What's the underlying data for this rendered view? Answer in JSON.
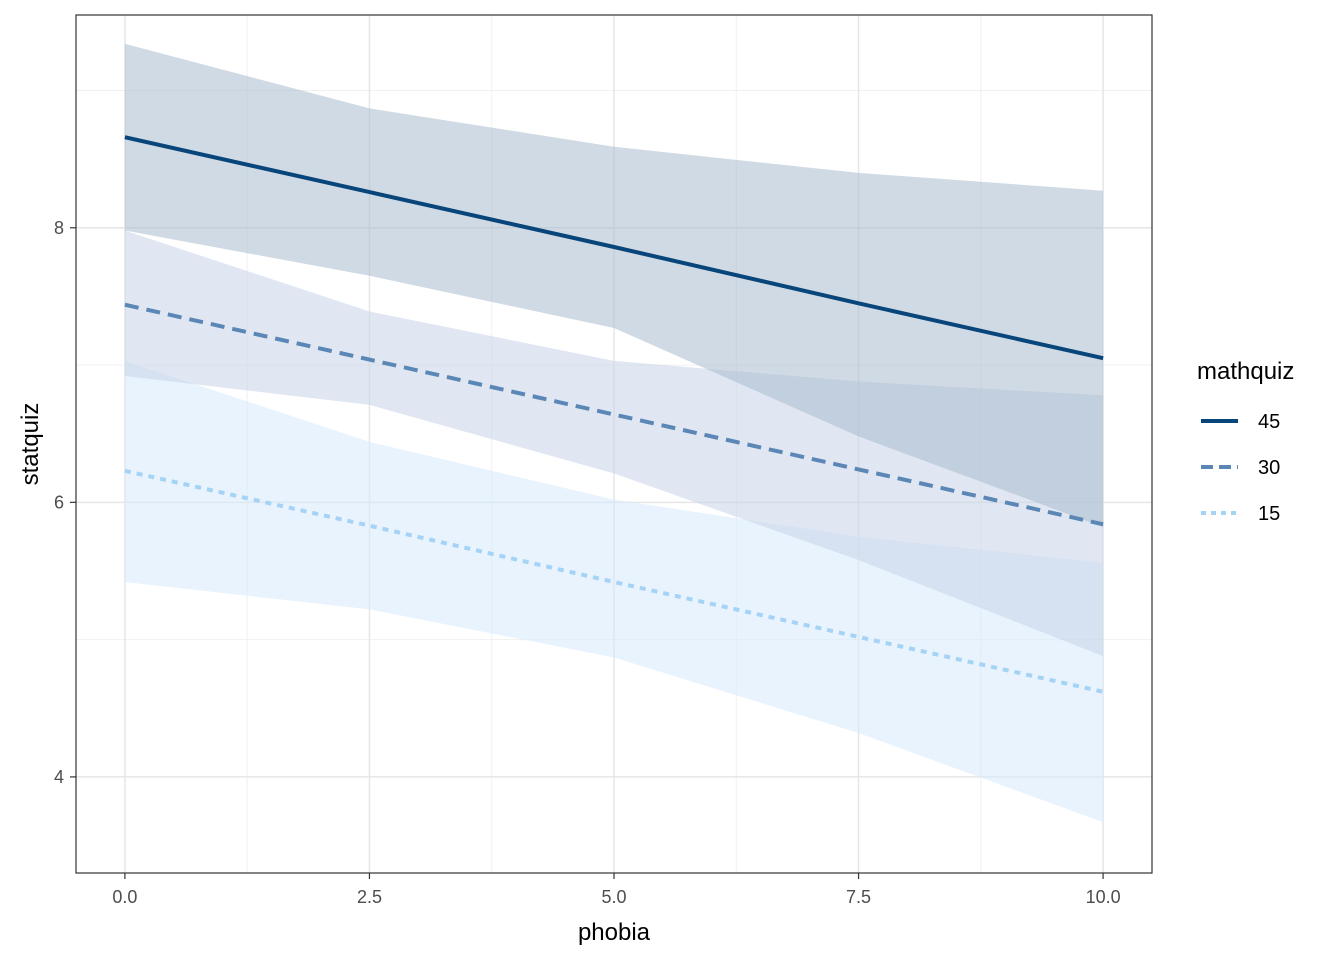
{
  "chart_data": {
    "type": "line",
    "title": "",
    "xlabel": "phobia",
    "ylabel": "statquiz",
    "xlim": [
      -0.5,
      10.5
    ],
    "ylim": [
      3.3,
      9.55
    ],
    "x_ticks": [
      0,
      2.5,
      5,
      7.5,
      10
    ],
    "x_tick_labels": [
      "0.0",
      "2.5",
      "5.0",
      "7.5",
      "10.0"
    ],
    "y_ticks": [
      4,
      6,
      8
    ],
    "y_tick_labels": [
      "4",
      "6",
      "8"
    ],
    "grid": true,
    "legend": {
      "title": "mathquiz",
      "position": "right"
    },
    "x": [
      0,
      2.5,
      5,
      7.5,
      10
    ],
    "series": [
      {
        "name": "45",
        "color": "#08457a",
        "dash": "solid",
        "values": [
          8.66,
          8.26,
          7.86,
          7.45,
          7.05
        ],
        "lower": [
          7.98,
          7.65,
          7.27,
          6.48,
          5.82
        ],
        "upper": [
          9.34,
          8.87,
          8.59,
          8.4,
          8.27
        ],
        "band_color": "#a9bccd"
      },
      {
        "name": "30",
        "color": "#5b87b6",
        "dash": "dashed",
        "values": [
          7.44,
          7.04,
          6.64,
          6.24,
          5.84
        ],
        "lower": [
          6.92,
          6.71,
          6.21,
          5.58,
          4.88
        ],
        "upper": [
          7.98,
          7.39,
          7.03,
          6.88,
          6.78
        ],
        "band_color": "#c7d3e7"
      },
      {
        "name": "15",
        "color": "#a5d3f6",
        "dash": "dotted",
        "values": [
          6.23,
          5.83,
          5.42,
          5.02,
          4.62
        ],
        "lower": [
          5.42,
          5.22,
          4.87,
          4.32,
          3.67
        ],
        "upper": [
          7.03,
          6.44,
          6.02,
          5.75,
          5.56
        ],
        "band_color": "#d6eafc"
      }
    ]
  }
}
